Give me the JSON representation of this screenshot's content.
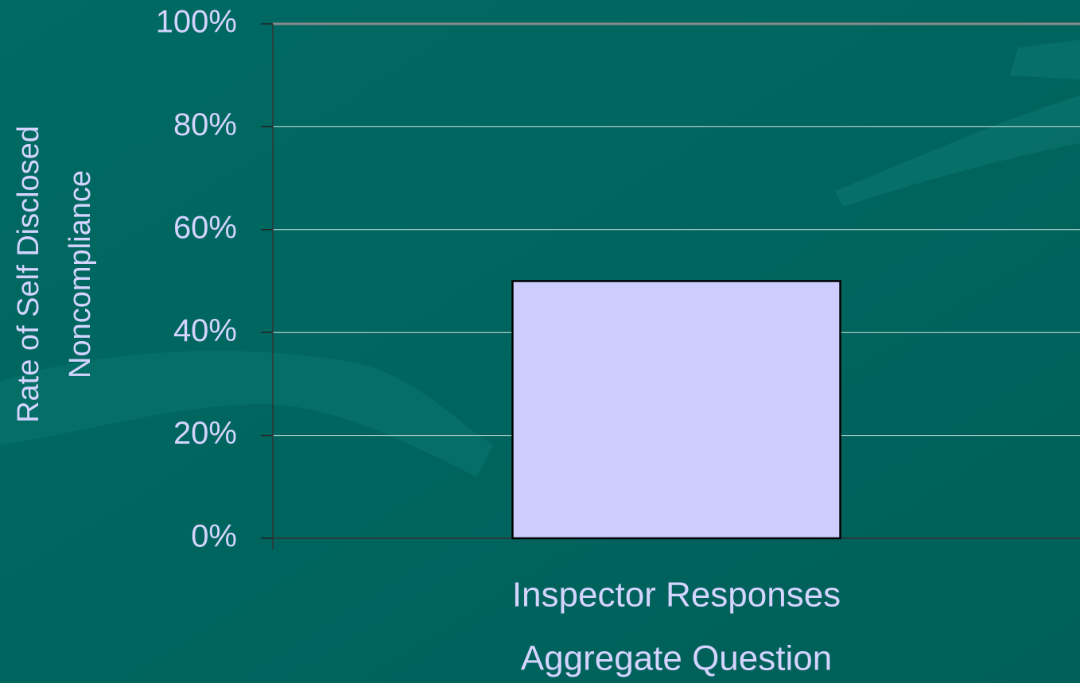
{
  "chart_data": {
    "type": "bar",
    "y_label": [
      "Rate of Self Disclosed",
      "Noncompliance"
    ],
    "categories": [
      [
        "Inspector Responses",
        "Aggregate Question"
      ]
    ],
    "values": [
      50
    ],
    "color": "#ccccff",
    "ylim": [
      0,
      100
    ],
    "yticks": [
      {
        "value": 0,
        "label": "0%"
      },
      {
        "value": 20,
        "label": "20%"
      },
      {
        "value": 40,
        "label": "40%"
      },
      {
        "value": 60,
        "label": "60%"
      },
      {
        "value": 80,
        "label": "80%"
      },
      {
        "value": 100,
        "label": "100%"
      }
    ],
    "grid": true
  }
}
